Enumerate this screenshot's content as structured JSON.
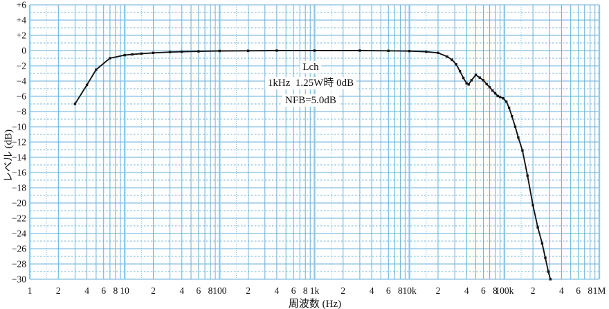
{
  "chart_data": {
    "type": "line",
    "title": "",
    "xlabel": "周波数 (Hz)",
    "ylabel": "レベル (dB)",
    "x_scale": "log",
    "xlim": [
      1,
      1000000
    ],
    "ylim": [
      -30,
      6
    ],
    "y_major_step": 2,
    "grid": "on",
    "annotation": {
      "line1": "Lch",
      "line2": "1kHz  1.25W時 0dB",
      "line3": "NFB=5.0dB"
    },
    "x_ticks": [
      {
        "f": 1,
        "label": "1"
      },
      {
        "f": 2,
        "label": "2"
      },
      {
        "f": 4,
        "label": "4"
      },
      {
        "f": 6,
        "label": "6"
      },
      {
        "f": 8,
        "label": "8"
      },
      {
        "f": 10,
        "label": "10"
      },
      {
        "f": 20,
        "label": "2"
      },
      {
        "f": 40,
        "label": "4"
      },
      {
        "f": 60,
        "label": "6"
      },
      {
        "f": 80,
        "label": "8"
      },
      {
        "f": 100,
        "label": "100"
      },
      {
        "f": 200,
        "label": "2"
      },
      {
        "f": 400,
        "label": "4"
      },
      {
        "f": 600,
        "label": "6"
      },
      {
        "f": 800,
        "label": "8"
      },
      {
        "f": 1000,
        "label": "1k"
      },
      {
        "f": 2000,
        "label": "2"
      },
      {
        "f": 4000,
        "label": "4"
      },
      {
        "f": 6000,
        "label": "6"
      },
      {
        "f": 8000,
        "label": "8"
      },
      {
        "f": 10000,
        "label": "10k"
      },
      {
        "f": 20000,
        "label": "2"
      },
      {
        "f": 40000,
        "label": "4"
      },
      {
        "f": 60000,
        "label": "6"
      },
      {
        "f": 80000,
        "label": "8"
      },
      {
        "f": 100000,
        "label": "100k"
      },
      {
        "f": 200000,
        "label": "2"
      },
      {
        "f": 400000,
        "label": "4"
      },
      {
        "f": 600000,
        "label": "6"
      },
      {
        "f": 800000,
        "label": "8"
      },
      {
        "f": 1000000,
        "label": "1M"
      }
    ],
    "y_ticks": [
      {
        "db": 6,
        "label": "+6"
      },
      {
        "db": 4,
        "label": "+4"
      },
      {
        "db": 2,
        "label": "+2"
      },
      {
        "db": 0,
        "label": "0"
      },
      {
        "db": -2,
        "label": "−2"
      },
      {
        "db": -4,
        "label": "−4"
      },
      {
        "db": -6,
        "label": "−6"
      },
      {
        "db": -8,
        "label": "−8"
      },
      {
        "db": -10,
        "label": "−10"
      },
      {
        "db": -12,
        "label": "−12"
      },
      {
        "db": -14,
        "label": "−14"
      },
      {
        "db": -16,
        "label": "−16"
      },
      {
        "db": -18,
        "label": "−18"
      },
      {
        "db": -20,
        "label": "−20"
      },
      {
        "db": -22,
        "label": "−22"
      },
      {
        "db": -24,
        "label": "−24"
      },
      {
        "db": -26,
        "label": "−26"
      },
      {
        "db": -28,
        "label": "−28"
      },
      {
        "db": -30,
        "label": "−30"
      }
    ],
    "series": [
      {
        "name": "Lch",
        "points": [
          [
            3,
            -7.0
          ],
          [
            4,
            -4.5
          ],
          [
            5,
            -2.5
          ],
          [
            7,
            -1.0
          ],
          [
            10,
            -0.6
          ],
          [
            12,
            -0.5
          ],
          [
            15,
            -0.4
          ],
          [
            20,
            -0.3
          ],
          [
            30,
            -0.2
          ],
          [
            40,
            -0.15
          ],
          [
            60,
            -0.1
          ],
          [
            100,
            -0.05
          ],
          [
            200,
            -0.03
          ],
          [
            400,
            0.0
          ],
          [
            1000,
            0.0
          ],
          [
            3000,
            0.0
          ],
          [
            6000,
            -0.03
          ],
          [
            10000,
            -0.06
          ],
          [
            15000,
            -0.15
          ],
          [
            20000,
            -0.3
          ],
          [
            25000,
            -0.8
          ],
          [
            28000,
            -1.2
          ],
          [
            31000,
            -1.8
          ],
          [
            34000,
            -2.7
          ],
          [
            37000,
            -3.6
          ],
          [
            40000,
            -4.3
          ],
          [
            42000,
            -4.45
          ],
          [
            45000,
            -3.9
          ],
          [
            50000,
            -3.2
          ],
          [
            55000,
            -3.55
          ],
          [
            60000,
            -3.9
          ],
          [
            65000,
            -4.4
          ],
          [
            70000,
            -4.8
          ],
          [
            75000,
            -5.25
          ],
          [
            80000,
            -5.6
          ],
          [
            85000,
            -5.95
          ],
          [
            90000,
            -6.1
          ],
          [
            97000,
            -6.25
          ],
          [
            105000,
            -6.7
          ],
          [
            112000,
            -7.5
          ],
          [
            120000,
            -8.6
          ],
          [
            130000,
            -10.0
          ],
          [
            140000,
            -11.4
          ],
          [
            155000,
            -13.1
          ],
          [
            175000,
            -16.4
          ],
          [
            200000,
            -20.3
          ],
          [
            225000,
            -23.2
          ],
          [
            250000,
            -25.3
          ],
          [
            270000,
            -27.2
          ],
          [
            290000,
            -29.0
          ],
          [
            305000,
            -30.0
          ]
        ]
      }
    ]
  },
  "style": {
    "curve_color": "#141414",
    "grid_minor_color": "#66aed8",
    "grid_major_color": "#8ec9e8",
    "grid_dashed_color": "#6cb2da",
    "grid_dotted_color": "#8ec9e8",
    "text_color": "#111111",
    "background": "#ffffff"
  }
}
